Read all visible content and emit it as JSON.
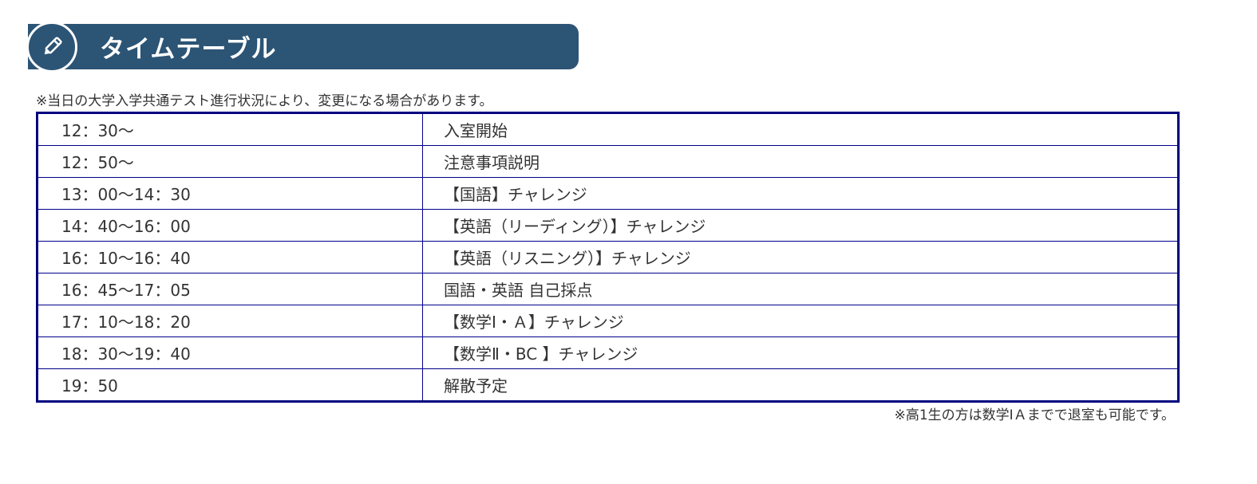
{
  "header": {
    "title": "タイムテーブル",
    "icon": "pencil-icon",
    "color": "#2c5475"
  },
  "note": "※当日の大学入学共通テスト進行状況により、変更になる場合があります。",
  "rows": [
    {
      "time": "12：30～",
      "event": "入室開始"
    },
    {
      "time": "12：50～",
      "event": "注意事項説明"
    },
    {
      "time": "13：00～14：30",
      "event": "【国語】チャレンジ"
    },
    {
      "time": "14：40～16：00",
      "event": "【英語（リーディング）】チャレンジ"
    },
    {
      "time": "16：10～16：40",
      "event": "【英語（リスニング）】チャレンジ"
    },
    {
      "time": "16：45～17：05",
      "event": "国語・英語 自己採点"
    },
    {
      "time": "17：10～18：20",
      "event": "【数学Ⅰ・Ａ】チャレンジ"
    },
    {
      "time": "18：30～19：40",
      "event": "【数学Ⅱ・BC 】チャレンジ"
    },
    {
      "time": "19：50",
      "event": "解散予定"
    }
  ],
  "footnote": "※高1生の方は数学ⅠＡまでで退室も可能です。"
}
